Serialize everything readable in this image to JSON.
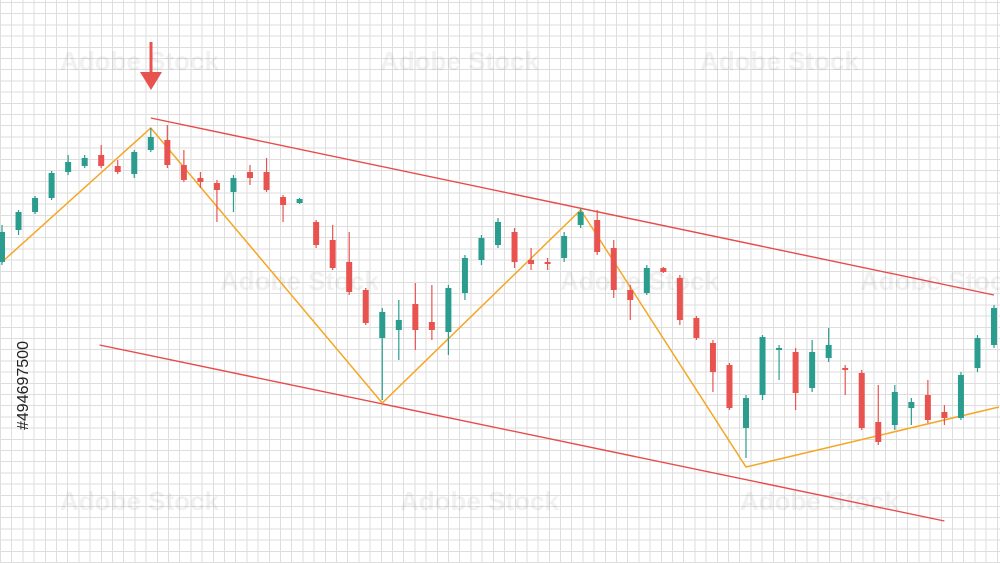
{
  "watermark": "Adobe Stock",
  "watermark_id": "#494697500",
  "chart_data": {
    "type": "candlestick",
    "xlim": [
      0,
      60
    ],
    "ylim": [
      0,
      563
    ],
    "up_color": "#2a9d8f",
    "down_color": "#e8534f",
    "open": [
      301,
      333,
      351,
      365,
      391,
      397,
      408,
      397,
      389,
      413,
      423,
      398,
      385,
      380,
      371,
      391,
      391,
      366,
      360,
      341,
      323,
      301,
      273,
      225,
      233,
      259,
      241,
      231,
      270,
      303,
      318,
      331,
      303,
      301,
      305,
      338,
      343,
      315,
      273,
      270,
      295,
      285,
      245,
      220,
      198,
      135,
      168,
      213,
      211,
      175,
      205,
      195,
      190,
      141,
      138,
      155,
      168,
      151,
      145,
      195,
      218
    ],
    "high": [
      338,
      353,
      367,
      392,
      408,
      408,
      418,
      403,
      413,
      435,
      438,
      413,
      391,
      383,
      388,
      398,
      405,
      368,
      365,
      343,
      338,
      331,
      275,
      255,
      263,
      280,
      278,
      278,
      308,
      328,
      345,
      335,
      315,
      305,
      331,
      355,
      353,
      323,
      278,
      298,
      296,
      288,
      247,
      223,
      200,
      168,
      228,
      218,
      215,
      223,
      235,
      198,
      193,
      178,
      178,
      165,
      183,
      158,
      191,
      228,
      258
    ],
    "low": [
      298,
      328,
      349,
      363,
      388,
      395,
      395,
      389,
      385,
      411,
      395,
      381,
      375,
      341,
      351,
      378,
      371,
      341,
      359,
      315,
      293,
      268,
      238,
      163,
      203,
      213,
      223,
      208,
      263,
      298,
      315,
      295,
      293,
      293,
      301,
      335,
      308,
      265,
      243,
      268,
      290,
      238,
      223,
      171,
      153,
      105,
      163,
      183,
      153,
      171,
      201,
      168,
      133,
      118,
      133,
      138,
      140,
      138,
      143,
      191,
      215
    ],
    "close": [
      331,
      351,
      365,
      390,
      401,
      405,
      397,
      391,
      411,
      426,
      398,
      383,
      381,
      373,
      385,
      385,
      373,
      358,
      364,
      318,
      295,
      271,
      240,
      251,
      243,
      233,
      233,
      275,
      305,
      325,
      341,
      301,
      299,
      299,
      327,
      351,
      311,
      273,
      263,
      295,
      291,
      243,
      225,
      191,
      155,
      165,
      226,
      215,
      170,
      211,
      218,
      193,
      135,
      121,
      171,
      161,
      143,
      145,
      188,
      225,
      255
    ],
    "zigzag": {
      "color": "#f5a623",
      "x": [
        0,
        9,
        23,
        35,
        45,
        60.3
      ],
      "values": [
        301,
        435,
        160,
        353,
        96,
        156
      ]
    },
    "channel": [
      {
        "color": "#e84a4a",
        "x": [
          9,
          60
        ],
        "values": [
          445,
          268
        ]
      },
      {
        "color": "#e84a4a",
        "x": [
          5.9,
          57
        ],
        "values": [
          218,
          42
        ]
      }
    ]
  }
}
